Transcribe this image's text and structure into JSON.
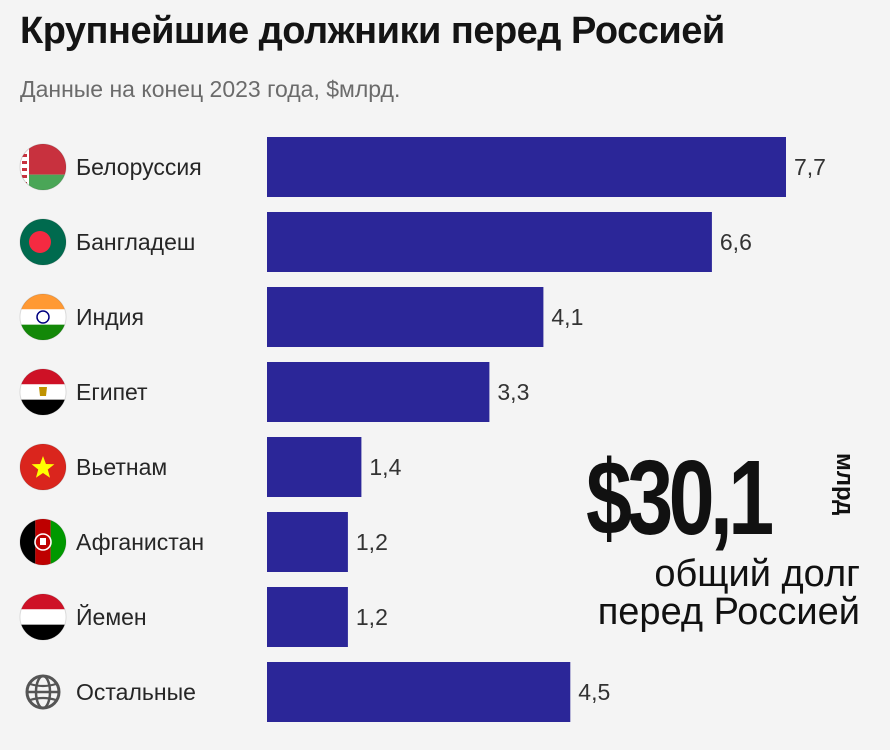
{
  "header": {
    "title": "Крупнейшие должники перед Россией",
    "subtitle": "Данные на конец 2023 года, $млрд."
  },
  "total": {
    "amount": "$30,1",
    "unit": "млрд",
    "caption_line1": "общий долг",
    "caption_line2": "перед Россией"
  },
  "colors": {
    "bar": "#2b2698",
    "background": "#f4f4f4"
  },
  "chart_data": {
    "type": "bar",
    "orientation": "horizontal",
    "categories": [
      "Белоруссия",
      "Бангладеш",
      "Индия",
      "Египет",
      "Вьетнам",
      "Афганистан",
      "Йемен",
      "Остальные"
    ],
    "values": [
      7.7,
      6.6,
      4.1,
      3.3,
      1.4,
      1.2,
      1.2,
      4.5
    ],
    "value_labels": [
      "7,7",
      "6,6",
      "4,1",
      "3,3",
      "1,4",
      "1,2",
      "1,2",
      "4,5"
    ],
    "icons": [
      "belarus-flag-icon",
      "bangladesh-flag-icon",
      "india-flag-icon",
      "egypt-flag-icon",
      "vietnam-flag-icon",
      "afghanistan-flag-icon",
      "yemen-flag-icon",
      "globe-icon"
    ],
    "xlim": [
      0,
      7.7
    ],
    "grid": false,
    "legend": "none"
  }
}
